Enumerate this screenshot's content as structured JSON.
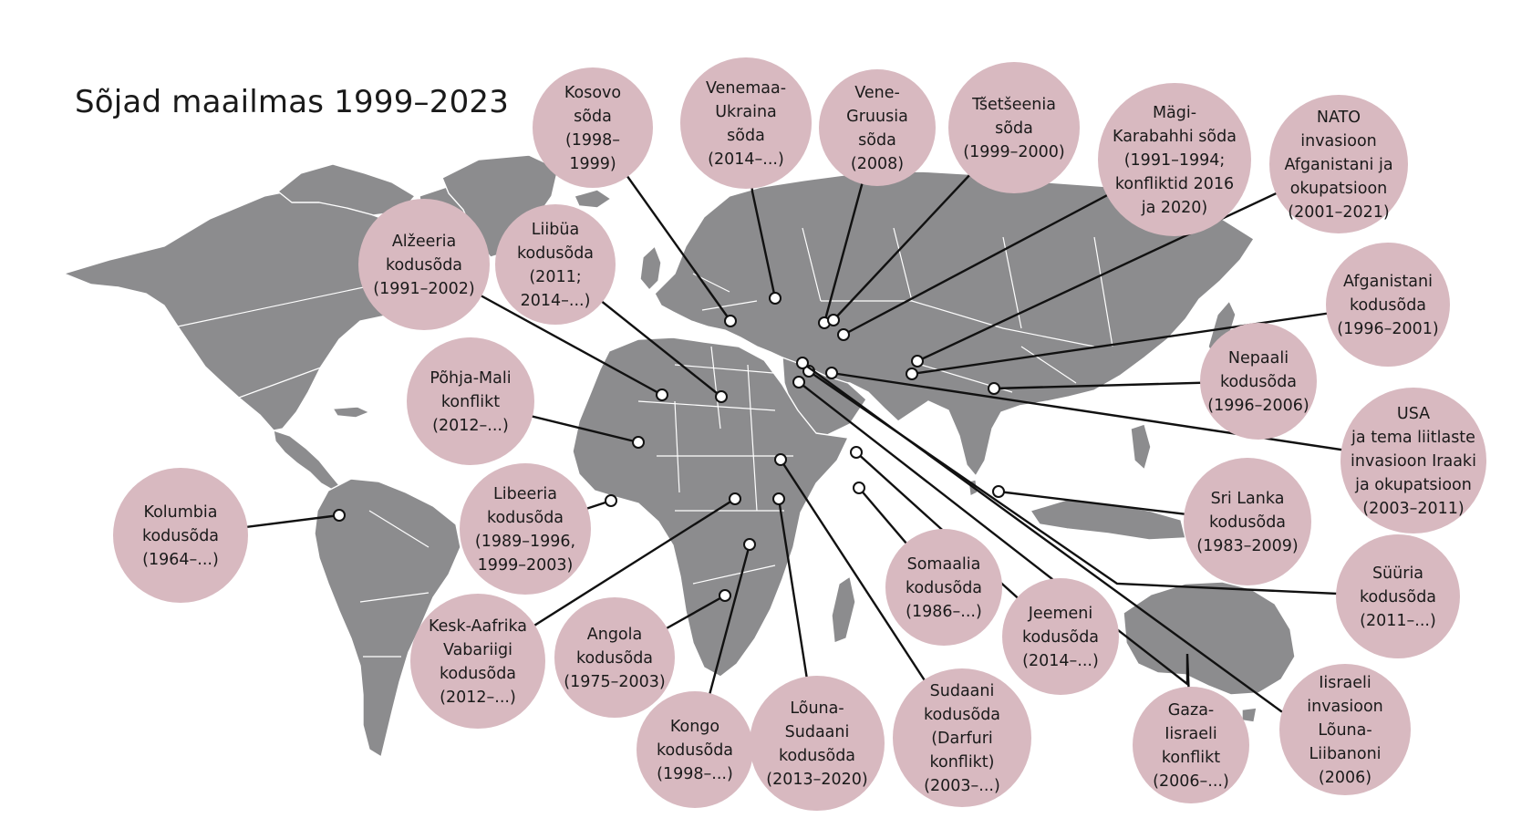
{
  "title": "Sõjad maailmas 1999–2023",
  "colors": {
    "land": "#8c8c8e",
    "bubble": "#d8b9c0",
    "line": "#111111",
    "background": "#ffffff"
  },
  "wars": [
    {
      "id": "kosovo",
      "lines": [
        "Kosovo",
        "sõda",
        "(1998–",
        "1999)"
      ]
    },
    {
      "id": "venemaa-ukraina",
      "lines": [
        "Venemaa-",
        "Ukraina",
        "sõda",
        "(2014–...)"
      ]
    },
    {
      "id": "vene-gruusia",
      "lines": [
        "Vene-",
        "Gruusia",
        "sõda",
        "(2008)"
      ]
    },
    {
      "id": "tsetseenia",
      "lines": [
        "Tšetšeenia",
        "sõda",
        "(1999–2000)"
      ]
    },
    {
      "id": "magi-karabahh",
      "lines": [
        "Mägi-",
        "Karabahhi sõda",
        "(1991–1994;",
        "konfliktid 2016",
        "ja 2020)"
      ]
    },
    {
      "id": "nato-afganistan",
      "lines": [
        "NATO",
        "invasioon",
        "Afganistani ja",
        "okupatsioon",
        "(2001–2021)"
      ]
    },
    {
      "id": "afganistan",
      "lines": [
        "Afganistani",
        "kodusõda",
        "(1996–2001)"
      ]
    },
    {
      "id": "nepaal",
      "lines": [
        "Nepaali",
        "kodusõda",
        "(1996–2006)"
      ]
    },
    {
      "id": "usa-iraak",
      "lines": [
        "USA",
        "ja tema liitlaste",
        "invasioon Iraaki",
        "ja okupatsioon",
        "(2003–2011)"
      ]
    },
    {
      "id": "sri-lanka",
      "lines": [
        "Sri Lanka",
        "kodusõda",
        "(1983–2009)"
      ]
    },
    {
      "id": "syyria",
      "lines": [
        "Süüria",
        "kodusõda",
        "(2011–...)"
      ]
    },
    {
      "id": "iisrael-liibanon",
      "lines": [
        "Iisraeli",
        "invasioon",
        "Lõuna-",
        "Liibanoni",
        "(2006)"
      ]
    },
    {
      "id": "gaza",
      "lines": [
        "Gaza-",
        "Iisraeli",
        "konflikt",
        "(2006–...)"
      ]
    },
    {
      "id": "jeemen",
      "lines": [
        "Jeemeni",
        "kodusõda",
        "(2014–...)"
      ]
    },
    {
      "id": "somaalia",
      "lines": [
        "Somaalia",
        "kodusõda",
        "(1986–...)"
      ]
    },
    {
      "id": "sudaan",
      "lines": [
        "Sudaani",
        "kodusõda",
        "(Darfuri",
        "konflikt)",
        "(2003–...)"
      ]
    },
    {
      "id": "louna-sudaan",
      "lines": [
        "Lõuna-",
        "Sudaani",
        "kodusõda",
        "(2013–2020)"
      ]
    },
    {
      "id": "kongo",
      "lines": [
        "Kongo",
        "kodusõda",
        "(1998–...)"
      ]
    },
    {
      "id": "angola",
      "lines": [
        "Angola",
        "kodusõda",
        "(1975–2003)"
      ]
    },
    {
      "id": "kesk-aafrika",
      "lines": [
        "Kesk-Aafrika",
        "Vabariigi",
        "kodusõda",
        "(2012–...)"
      ]
    },
    {
      "id": "libeeria",
      "lines": [
        "Libeeria",
        "kodusõda",
        "(1989–1996,",
        "1999–2003)"
      ]
    },
    {
      "id": "kolumbia",
      "lines": [
        "Kolumbia",
        "kodusõda",
        "(1964–...)"
      ]
    },
    {
      "id": "pohja-mali",
      "lines": [
        "Põhja-Mali",
        "konflikt",
        "(2012–...)"
      ]
    },
    {
      "id": "alzeeria",
      "lines": [
        "Alžeeria",
        "kodusõda",
        "(1991–2002)"
      ]
    },
    {
      "id": "liibua",
      "lines": [
        "Liibüa",
        "kodusõda",
        "(2011;",
        "2014–...)"
      ]
    }
  ]
}
